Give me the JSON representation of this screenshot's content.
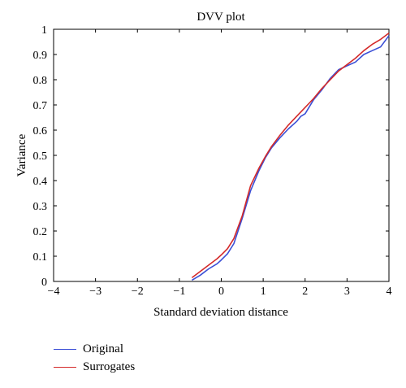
{
  "chart_data": {
    "type": "line",
    "title": "DVV plot",
    "xlabel": "Standard deviation distance",
    "ylabel": "Variance",
    "xlim": [
      -4,
      4
    ],
    "ylim": [
      0,
      1
    ],
    "xticks": [
      "−4",
      "−3",
      "−2",
      "−1",
      "0",
      "1",
      "2",
      "3",
      "4"
    ],
    "yticks": [
      "0",
      "0.1",
      "0.2",
      "0.3",
      "0.4",
      "0.5",
      "0.6",
      "0.7",
      "0.8",
      "0.9",
      "1"
    ],
    "grid": false,
    "legend_position": "below-left",
    "series": [
      {
        "name": "Original",
        "color": "#3b4fd6",
        "x": [
          -0.7,
          -0.5,
          -0.3,
          -0.1,
          0.0,
          0.15,
          0.3,
          0.5,
          0.7,
          0.9,
          1.05,
          1.2,
          1.4,
          1.6,
          1.8,
          1.9,
          2.0,
          2.2,
          2.4,
          2.6,
          2.8,
          3.0,
          3.2,
          3.4,
          3.6,
          3.8,
          4.0
        ],
        "values": [
          0.005,
          0.025,
          0.05,
          0.07,
          0.085,
          0.11,
          0.15,
          0.25,
          0.36,
          0.44,
          0.49,
          0.53,
          0.57,
          0.605,
          0.635,
          0.655,
          0.665,
          0.72,
          0.76,
          0.805,
          0.84,
          0.855,
          0.87,
          0.9,
          0.915,
          0.93,
          0.975
        ]
      },
      {
        "name": "Surrogates",
        "color": "#d42a2a",
        "x": [
          -0.7,
          -0.5,
          -0.3,
          -0.1,
          0.0,
          0.15,
          0.3,
          0.5,
          0.7,
          0.9,
          1.05,
          1.2,
          1.4,
          1.6,
          1.8,
          2.0,
          2.2,
          2.4,
          2.6,
          2.8,
          3.0,
          3.2,
          3.4,
          3.6,
          3.8,
          4.0
        ],
        "values": [
          0.015,
          0.04,
          0.065,
          0.09,
          0.105,
          0.13,
          0.17,
          0.26,
          0.38,
          0.45,
          0.495,
          0.535,
          0.58,
          0.62,
          0.655,
          0.69,
          0.725,
          0.765,
          0.8,
          0.835,
          0.86,
          0.885,
          0.915,
          0.94,
          0.96,
          0.985
        ]
      }
    ]
  }
}
